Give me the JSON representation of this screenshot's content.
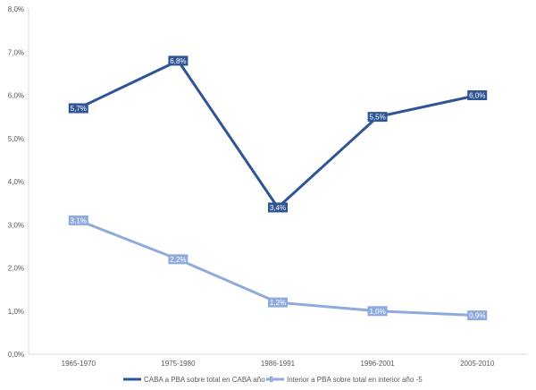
{
  "chart_data": {
    "type": "line",
    "categories": [
      "1965-1970",
      "1975-1980",
      "1986-1991",
      "1996-2001",
      "2005-2010"
    ],
    "ylim": [
      0,
      8
    ],
    "y_ticks": [
      "0,0%",
      "1,0%",
      "2,0%",
      "3,0%",
      "4,0%",
      "5,0%",
      "6,0%",
      "7,0%",
      "8,0%"
    ],
    "grid": false,
    "legend_position": "bottom",
    "series": [
      {
        "name": "CABA a PBA sobre total en CABA año -5",
        "values": [
          5.7,
          6.8,
          3.4,
          5.5,
          6.0
        ],
        "labels": [
          "5,7%",
          "6,8%",
          "3,4%",
          "5,5%",
          "6,0%"
        ],
        "color": "#2f5597"
      },
      {
        "name": "Interior a PBA sobre total en interior año -5",
        "values": [
          3.1,
          2.2,
          1.2,
          1.0,
          0.9
        ],
        "labels": [
          "3,1%",
          "2,2%",
          "1,2%",
          "1,0%",
          "0,9%"
        ],
        "color": "#8faadc"
      }
    ]
  }
}
